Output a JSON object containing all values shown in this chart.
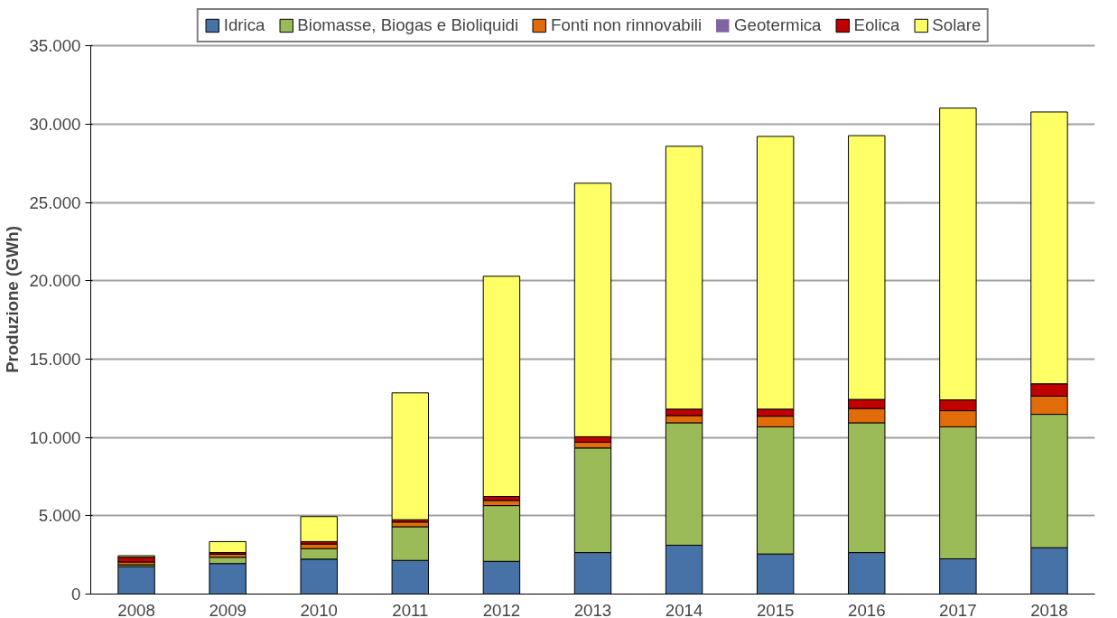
{
  "chart_data": {
    "type": "bar",
    "stacked": true,
    "ylabel": "Produzione (GWh)",
    "categories": [
      "2008",
      "2009",
      "2010",
      "2011",
      "2012",
      "2013",
      "2014",
      "2015",
      "2016",
      "2017",
      "2018"
    ],
    "series": [
      {
        "name": "Idrica",
        "color": "#4672a8",
        "values": [
          1750,
          1950,
          2230,
          2150,
          2090,
          2650,
          3120,
          2560,
          2650,
          2250,
          2960
        ]
      },
      {
        "name": "Biomasse, Biogas e Bioliquidi",
        "color": "#9bbb59",
        "values": [
          120,
          400,
          670,
          2150,
          3560,
          6680,
          7820,
          8120,
          8290,
          8430,
          8520
        ]
      },
      {
        "name": "Fonti non rinnovabili",
        "color": "#e36c0a",
        "values": [
          180,
          200,
          300,
          300,
          330,
          370,
          460,
          680,
          910,
          1030,
          1160
        ]
      },
      {
        "name": "Geotermica",
        "color": "#8064a2",
        "values": [
          0,
          0,
          0,
          0,
          0,
          0,
          0,
          0,
          0,
          0,
          0
        ]
      },
      {
        "name": "Eolica",
        "color": "#c00000",
        "values": [
          300,
          100,
          150,
          150,
          250,
          350,
          410,
          450,
          580,
          690,
          790
        ]
      },
      {
        "name": "Solare",
        "color": "#ffff66",
        "values": [
          100,
          700,
          1600,
          8100,
          14070,
          16190,
          16790,
          17420,
          16850,
          18640,
          17360
        ]
      }
    ],
    "ylim": [
      0,
      35000
    ],
    "yticks": [
      0,
      {
        "value": 5000,
        "label": "5.000"
      },
      {
        "value": 10000,
        "label": "10.000"
      },
      {
        "value": 15000,
        "label": "15.000"
      },
      {
        "value": 20000,
        "label": "20.000"
      },
      {
        "value": 25000,
        "label": "25.000"
      },
      {
        "value": 30000,
        "label": "30.000"
      },
      {
        "value": 35000,
        "label": "35.000"
      }
    ],
    "grid": "y",
    "legend": "top"
  }
}
